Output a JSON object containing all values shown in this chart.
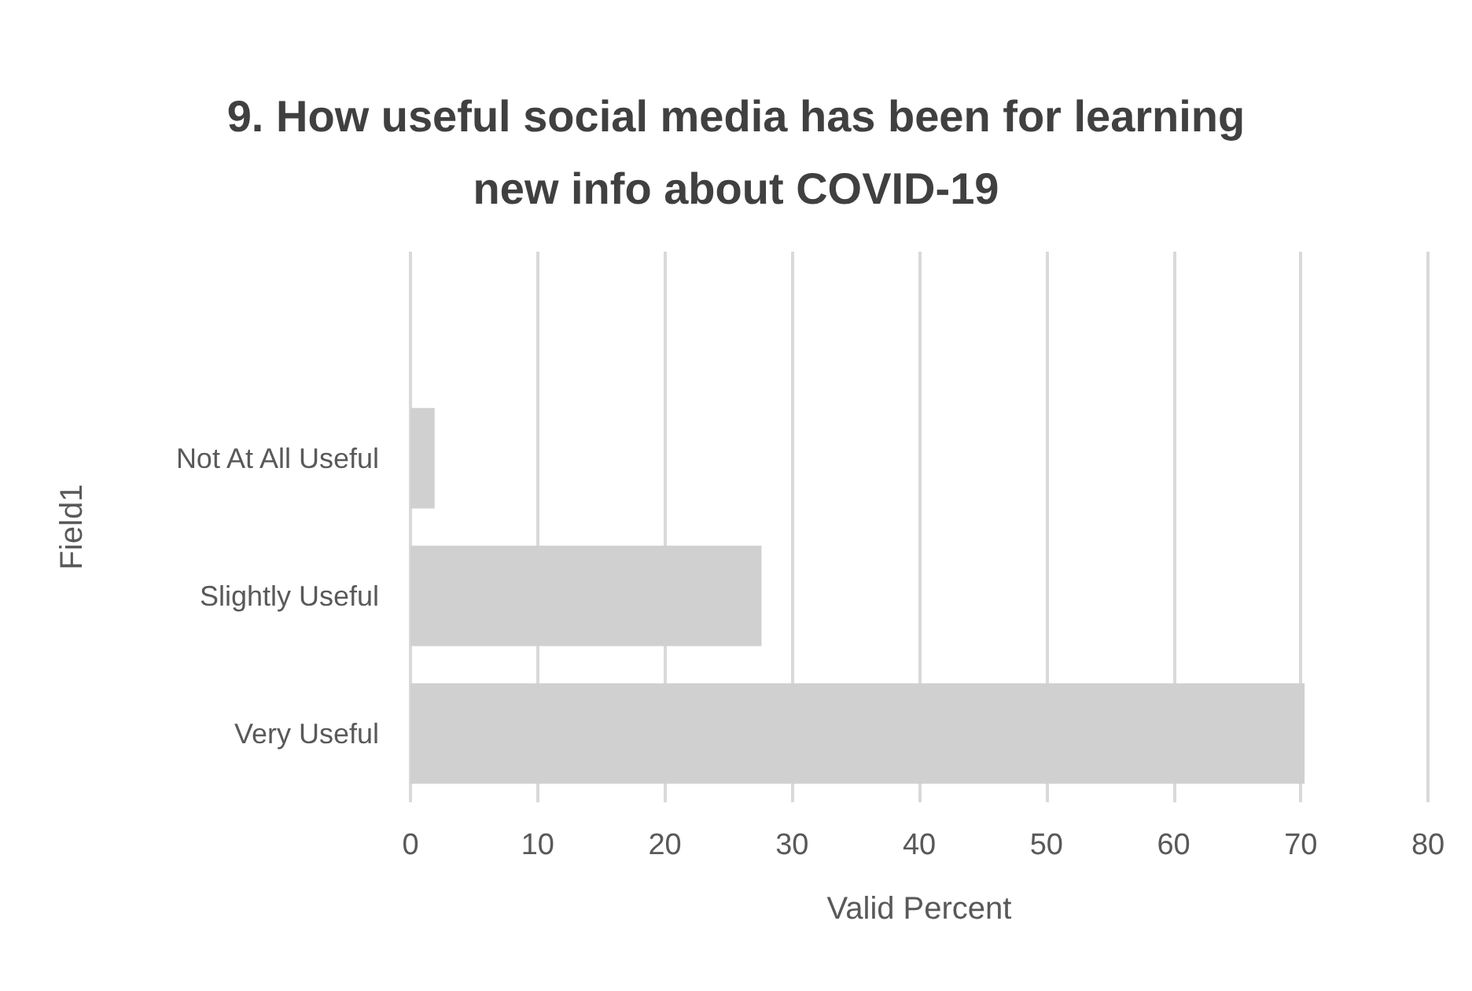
{
  "chart_data": {
    "type": "bar",
    "orientation": "horizontal",
    "title": "9. How useful social media has been for learning\nnew info about COVID-19",
    "xlabel": "Valid Percent",
    "ylabel": "Field1",
    "categories": [
      null,
      "Not At All Useful",
      "Slightly Useful",
      "Very Useful"
    ],
    "values": [
      null,
      1.9,
      27.6,
      70.3
    ],
    "color": "#d0d0d0",
    "xlim": [
      0,
      80
    ],
    "xticks": [
      0,
      10,
      20,
      30,
      40,
      50,
      60,
      70,
      80
    ],
    "grid": "x"
  }
}
